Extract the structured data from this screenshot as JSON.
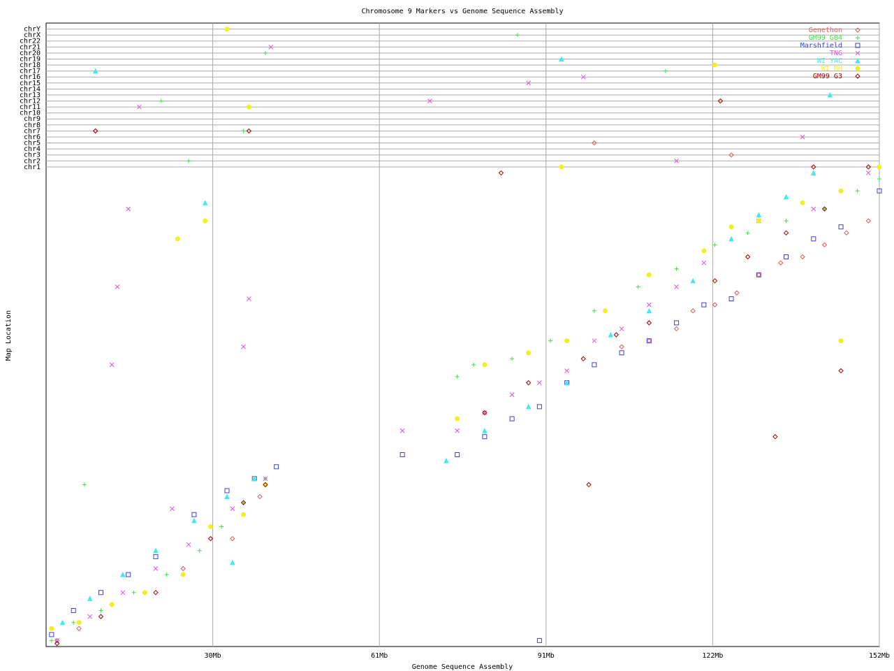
{
  "chart_data": {
    "type": "scatter",
    "title": "Chromosome 9 Markers vs Genome Sequence Assembly",
    "xlabel": "Genome Sequence Assembly",
    "ylabel": "Map Location",
    "xlim": [
      0,
      152
    ],
    "ylim": [
      0,
      104
    ],
    "xticks": [
      {
        "value": 30.4,
        "label": "30Mb"
      },
      {
        "value": 60.8,
        "label": "61Mb"
      },
      {
        "value": 91.2,
        "label": "91Mb"
      },
      {
        "value": 121.6,
        "label": "122Mb"
      },
      {
        "value": 152,
        "label": "152Mb"
      }
    ],
    "yticks": [
      {
        "value": 80,
        "label": "chr1"
      },
      {
        "value": 81,
        "label": "chr2"
      },
      {
        "value": 82,
        "label": "chr3"
      },
      {
        "value": 83,
        "label": "chr4"
      },
      {
        "value": 84,
        "label": "chr5"
      },
      {
        "value": 85,
        "label": "chr6"
      },
      {
        "value": 86,
        "label": "chr7"
      },
      {
        "value": 87,
        "label": "chr8"
      },
      {
        "value": 88,
        "label": "chr9"
      },
      {
        "value": 89,
        "label": "chr10"
      },
      {
        "value": 90,
        "label": "chr11"
      },
      {
        "value": 91,
        "label": "chr12"
      },
      {
        "value": 92,
        "label": "chr13"
      },
      {
        "value": 93,
        "label": "chr14"
      },
      {
        "value": 94,
        "label": "chr15"
      },
      {
        "value": 95,
        "label": "chr16"
      },
      {
        "value": 96,
        "label": "chr17"
      },
      {
        "value": 97,
        "label": "chr18"
      },
      {
        "value": 98,
        "label": "chr19"
      },
      {
        "value": 99,
        "label": "chr20"
      },
      {
        "value": 100,
        "label": "chr21"
      },
      {
        "value": 101,
        "label": "chr22"
      },
      {
        "value": 102,
        "label": "chrX"
      },
      {
        "value": 103,
        "label": "chrY"
      }
    ],
    "grid": true,
    "legend": "upper right",
    "series": [
      {
        "name": "Genethon",
        "color": "#e05a5a",
        "marker": "diamond",
        "x": [
          2,
          6,
          12,
          18,
          25,
          34,
          39,
          105,
          110,
          115,
          118,
          122,
          126,
          130,
          134,
          138,
          142,
          146,
          150,
          9,
          125,
          100
        ],
        "values": [
          1,
          3,
          7,
          9,
          13,
          18,
          25,
          50,
          51,
          53,
          56,
          57,
          59,
          62,
          64,
          65,
          67,
          69,
          71,
          86,
          82,
          84
        ]
      },
      {
        "name": "GM99 GB4",
        "color": "#40e040",
        "marker": "plus",
        "x": [
          1,
          5,
          10,
          16,
          22,
          28,
          32,
          36,
          40,
          75,
          78,
          85,
          92,
          100,
          108,
          115,
          122,
          128,
          135,
          142,
          148,
          152,
          86,
          40,
          21,
          36,
          26,
          113,
          7
        ],
        "values": [
          1,
          4,
          6,
          9,
          12,
          16,
          20,
          24,
          28,
          45,
          47,
          48,
          51,
          56,
          60,
          63,
          67,
          69,
          71,
          73,
          76,
          78,
          102,
          99,
          91,
          86,
          81,
          96,
          27
        ]
      },
      {
        "name": "Marshfield",
        "color": "#4040d0",
        "marker": "square",
        "x": [
          1,
          5,
          10,
          15,
          20,
          27,
          33,
          38,
          42,
          65,
          75,
          80,
          85,
          90,
          95,
          100,
          105,
          110,
          115,
          120,
          125,
          130,
          135,
          140,
          145,
          152,
          90
        ],
        "values": [
          2,
          6,
          9,
          12,
          15,
          22,
          26,
          28,
          30,
          32,
          32,
          35,
          38,
          40,
          44,
          47,
          49,
          51,
          54,
          57,
          58,
          62,
          65,
          68,
          70,
          76,
          1
        ]
      },
      {
        "name": "TNG",
        "color": "#e050e0",
        "marker": "cross",
        "x": [
          2,
          8,
          14,
          20,
          26,
          34,
          40,
          65,
          75,
          80,
          85,
          90,
          95,
          100,
          105,
          110,
          115,
          120,
          130,
          140,
          150,
          15,
          13,
          12,
          37,
          23,
          36,
          41,
          17,
          98,
          115,
          138,
          88,
          70
        ],
        "values": [
          1,
          5,
          9,
          13,
          17,
          23,
          28,
          36,
          36,
          39,
          42,
          44,
          46,
          51,
          53,
          57,
          60,
          64,
          71,
          73,
          79,
          73,
          60,
          47,
          58,
          23,
          50,
          100,
          90,
          95,
          81,
          85,
          94,
          91
        ]
      },
      {
        "name": "WI YAC",
        "color": "#40e8f0",
        "marker": "triangle",
        "x": [
          3,
          8,
          14,
          20,
          27,
          33,
          38,
          73,
          80,
          88,
          95,
          103,
          110,
          118,
          125,
          130,
          135,
          140,
          29,
          34,
          9,
          94,
          143
        ],
        "values": [
          4,
          8,
          12,
          16,
          21,
          25,
          28,
          31,
          36,
          40,
          44,
          52,
          56,
          61,
          68,
          72,
          75,
          79,
          74,
          14,
          96,
          98,
          92
        ]
      },
      {
        "name": "WI RH",
        "color": "#f0f020",
        "marker": "circle",
        "x": [
          1,
          6,
          12,
          18,
          25,
          30,
          36,
          40,
          75,
          80,
          88,
          95,
          102,
          110,
          120,
          125,
          130,
          138,
          145,
          152,
          24,
          29,
          33,
          37,
          94,
          122,
          145
        ],
        "values": [
          3,
          4,
          7,
          9,
          12,
          20,
          22,
          27,
          38,
          47,
          49,
          51,
          56,
          62,
          66,
          70,
          71,
          74,
          76,
          80,
          68,
          71,
          103,
          90,
          80,
          97,
          51
        ]
      },
      {
        "name": "GM99 G3",
        "color": "#a00000",
        "marker": "diamond",
        "x": [
          2,
          10,
          20,
          30,
          36,
          40,
          80,
          88,
          98,
          104,
          110,
          122,
          128,
          135,
          142,
          150,
          9,
          37,
          133,
          99,
          123,
          145,
          140,
          83
        ],
        "values": [
          0.5,
          5,
          9,
          18,
          24,
          27,
          39,
          44,
          48,
          52,
          54,
          61,
          65,
          69,
          73,
          80,
          86,
          86,
          35,
          27,
          91,
          46,
          80,
          79
        ]
      }
    ]
  }
}
